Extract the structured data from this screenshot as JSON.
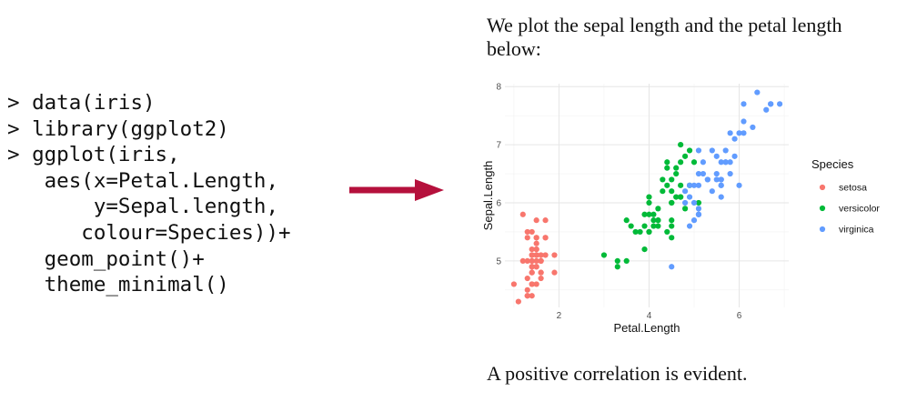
{
  "code_lines": [
    "> data(iris)",
    "> library(ggplot2)",
    "> ggplot(iris,",
    "   aes(x=Petal.Length,",
    "       y=Sepal.length,",
    "      colour=Species))+",
    "   geom_point()+",
    "   theme_minimal()"
  ],
  "caption_top": "We plot the sepal length and the petal length below:",
  "caption_bottom": "A positive correlation is evident.",
  "arrow_color": "#b5103c",
  "chart_data": {
    "type": "scatter",
    "title": "",
    "xlabel": "Petal.Length",
    "ylabel": "Sepal.Length",
    "xlim": [
      0.8,
      7.1
    ],
    "ylim": [
      4.2,
      8.05
    ],
    "xticks": [
      2,
      4,
      6
    ],
    "yticks": [
      5,
      6,
      7,
      8
    ],
    "grid": true,
    "legend_position": "right",
    "legend_title": "Species",
    "series": [
      {
        "name": "setosa",
        "color": "#f8766d",
        "points": [
          [
            1.4,
            5.1
          ],
          [
            1.4,
            4.9
          ],
          [
            1.3,
            4.7
          ],
          [
            1.5,
            4.6
          ],
          [
            1.4,
            5.0
          ],
          [
            1.7,
            5.4
          ],
          [
            1.4,
            4.6
          ],
          [
            1.5,
            5.0
          ],
          [
            1.4,
            4.4
          ],
          [
            1.5,
            4.9
          ],
          [
            1.5,
            5.4
          ],
          [
            1.6,
            4.8
          ],
          [
            1.4,
            4.8
          ],
          [
            1.1,
            4.3
          ],
          [
            1.2,
            5.8
          ],
          [
            1.5,
            5.7
          ],
          [
            1.3,
            5.4
          ],
          [
            1.4,
            5.1
          ],
          [
            1.7,
            5.7
          ],
          [
            1.5,
            5.1
          ],
          [
            1.7,
            5.4
          ],
          [
            1.5,
            5.1
          ],
          [
            1.0,
            4.6
          ],
          [
            1.7,
            5.1
          ],
          [
            1.9,
            4.8
          ],
          [
            1.6,
            5.0
          ],
          [
            1.6,
            5.0
          ],
          [
            1.5,
            5.2
          ],
          [
            1.4,
            5.2
          ],
          [
            1.6,
            4.7
          ],
          [
            1.6,
            4.8
          ],
          [
            1.5,
            5.4
          ],
          [
            1.5,
            5.2
          ],
          [
            1.4,
            5.5
          ],
          [
            1.5,
            4.9
          ],
          [
            1.2,
            5.0
          ],
          [
            1.3,
            5.5
          ],
          [
            1.4,
            4.9
          ],
          [
            1.3,
            4.4
          ],
          [
            1.5,
            5.1
          ],
          [
            1.3,
            5.0
          ],
          [
            1.3,
            4.5
          ],
          [
            1.3,
            4.4
          ],
          [
            1.6,
            5.0
          ],
          [
            1.9,
            5.1
          ],
          [
            1.4,
            4.8
          ],
          [
            1.6,
            5.1
          ],
          [
            1.4,
            4.6
          ],
          [
            1.5,
            5.3
          ],
          [
            1.4,
            5.0
          ]
        ]
      },
      {
        "name": "versicolor",
        "color": "#00ba38",
        "points": [
          [
            4.7,
            7.0
          ],
          [
            4.5,
            6.4
          ],
          [
            4.9,
            6.9
          ],
          [
            4.0,
            5.5
          ],
          [
            4.6,
            6.5
          ],
          [
            4.5,
            5.7
          ],
          [
            4.7,
            6.3
          ],
          [
            3.3,
            4.9
          ],
          [
            4.6,
            6.6
          ],
          [
            3.9,
            5.2
          ],
          [
            3.5,
            5.0
          ],
          [
            4.2,
            5.9
          ],
          [
            4.0,
            6.0
          ],
          [
            4.7,
            6.1
          ],
          [
            3.6,
            5.6
          ],
          [
            4.4,
            6.7
          ],
          [
            4.5,
            5.6
          ],
          [
            4.1,
            5.8
          ],
          [
            4.5,
            6.2
          ],
          [
            3.9,
            5.6
          ],
          [
            4.8,
            5.9
          ],
          [
            4.0,
            6.1
          ],
          [
            4.9,
            6.3
          ],
          [
            4.7,
            6.1
          ],
          [
            4.3,
            6.4
          ],
          [
            4.4,
            6.6
          ],
          [
            4.8,
            6.8
          ],
          [
            5.0,
            6.7
          ],
          [
            4.5,
            6.0
          ],
          [
            3.5,
            5.7
          ],
          [
            3.8,
            5.5
          ],
          [
            3.7,
            5.5
          ],
          [
            3.9,
            5.8
          ],
          [
            5.1,
            6.0
          ],
          [
            4.5,
            5.4
          ],
          [
            4.5,
            6.0
          ],
          [
            4.7,
            6.7
          ],
          [
            4.4,
            6.3
          ],
          [
            4.1,
            5.6
          ],
          [
            4.0,
            5.5
          ],
          [
            4.4,
            5.5
          ],
          [
            4.6,
            6.1
          ],
          [
            4.0,
            5.8
          ],
          [
            3.3,
            5.0
          ],
          [
            4.2,
            5.6
          ],
          [
            4.2,
            5.7
          ],
          [
            4.2,
            5.7
          ],
          [
            4.3,
            6.2
          ],
          [
            3.0,
            5.1
          ],
          [
            4.1,
            5.7
          ]
        ]
      },
      {
        "name": "virginica",
        "color": "#619cff",
        "points": [
          [
            6.0,
            6.3
          ],
          [
            5.1,
            5.8
          ],
          [
            5.9,
            7.1
          ],
          [
            5.6,
            6.3
          ],
          [
            5.8,
            6.5
          ],
          [
            6.6,
            7.6
          ],
          [
            4.5,
            4.9
          ],
          [
            6.3,
            7.3
          ],
          [
            5.8,
            6.7
          ],
          [
            6.1,
            7.2
          ],
          [
            5.1,
            6.5
          ],
          [
            5.3,
            6.4
          ],
          [
            5.5,
            6.8
          ],
          [
            5.0,
            5.7
          ],
          [
            5.1,
            5.8
          ],
          [
            5.3,
            6.4
          ],
          [
            5.5,
            6.5
          ],
          [
            6.7,
            7.7
          ],
          [
            6.9,
            7.7
          ],
          [
            5.0,
            6.0
          ],
          [
            5.7,
            6.9
          ],
          [
            4.9,
            5.6
          ],
          [
            6.7,
            7.7
          ],
          [
            4.9,
            6.3
          ],
          [
            5.7,
            6.7
          ],
          [
            6.0,
            7.2
          ],
          [
            4.8,
            6.2
          ],
          [
            4.9,
            6.1
          ],
          [
            5.6,
            6.4
          ],
          [
            5.8,
            7.2
          ],
          [
            6.1,
            7.4
          ],
          [
            6.4,
            7.9
          ],
          [
            5.6,
            6.4
          ],
          [
            5.1,
            6.3
          ],
          [
            5.6,
            6.1
          ],
          [
            6.1,
            7.7
          ],
          [
            5.6,
            6.3
          ],
          [
            5.5,
            6.4
          ],
          [
            4.8,
            6.0
          ],
          [
            5.4,
            6.9
          ],
          [
            5.6,
            6.7
          ],
          [
            5.1,
            6.9
          ],
          [
            5.1,
            5.8
          ],
          [
            5.9,
            6.8
          ],
          [
            5.7,
            6.7
          ],
          [
            5.2,
            6.7
          ],
          [
            5.0,
            6.3
          ],
          [
            5.2,
            6.5
          ],
          [
            5.4,
            6.2
          ],
          [
            5.1,
            5.9
          ]
        ]
      }
    ]
  }
}
